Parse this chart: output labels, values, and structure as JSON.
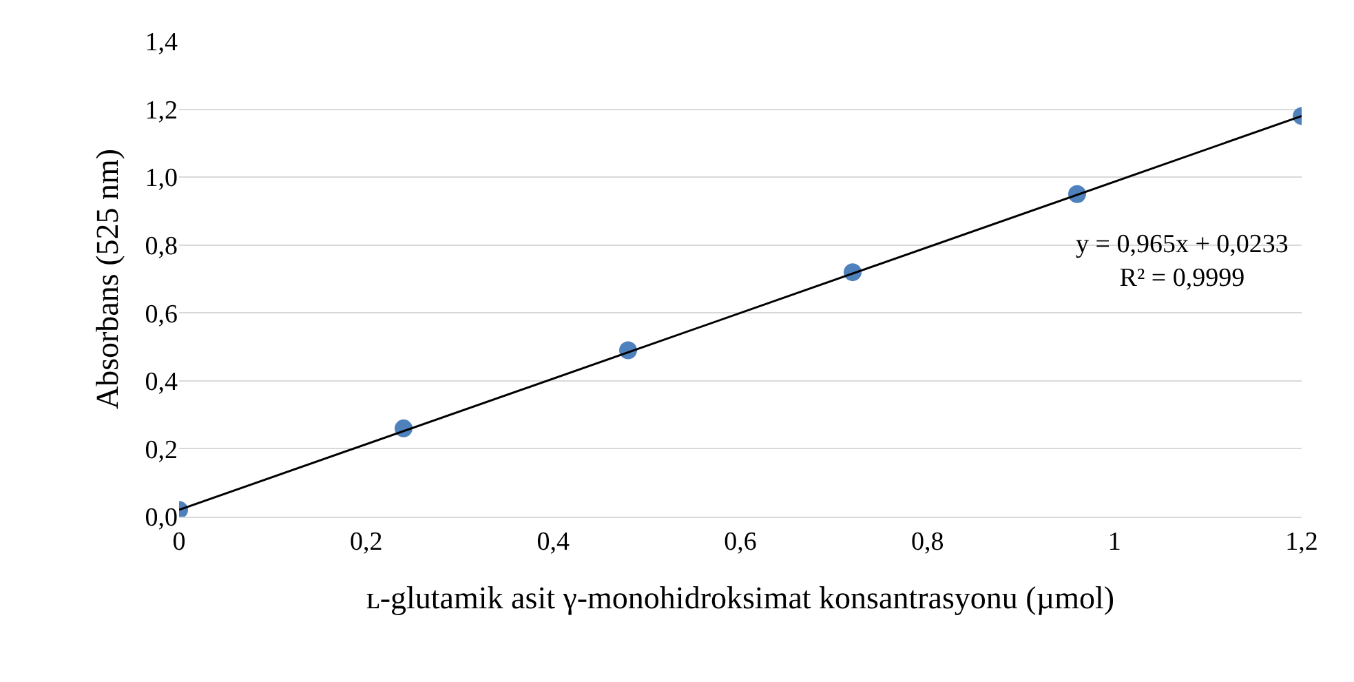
{
  "chart_data": {
    "type": "scatter",
    "xlabel": "ʟ-glutamik asit γ-monohidroksimat konsantrasyonu (µmol)",
    "ylabel": "Absorbans (525 nm)",
    "x": [
      0,
      0.24,
      0.48,
      0.72,
      0.96,
      1.2
    ],
    "series": [
      {
        "color": "#4f81bd",
        "values": [
          0.02,
          0.26,
          0.49,
          0.72,
          0.95,
          1.18
        ],
        "marker": "circle"
      },
      {
        "type": "line",
        "color": "#000000",
        "x": [
          0,
          1.2
        ],
        "values": [
          0.02,
          1.18
        ],
        "line_style": "solid"
      }
    ],
    "xlim": [
      0,
      1.2
    ],
    "ylim": [
      0,
      1.4
    ],
    "xticks": [
      0,
      {
        "value": 0.2,
        "label": "0,2"
      },
      {
        "value": 0.4,
        "label": "0,4"
      },
      {
        "value": 0.6,
        "label": "0,6"
      },
      {
        "value": 0.8,
        "label": "0,8"
      },
      1,
      {
        "value": 1.2,
        "label": "1,2"
      }
    ],
    "yticks": [
      {
        "value": 0,
        "label": "0,0"
      },
      {
        "value": 0.2,
        "label": "0,2"
      },
      {
        "value": 0.4,
        "label": "0,4"
      },
      {
        "value": 0.6,
        "label": "0,6"
      },
      {
        "value": 0.8,
        "label": "0,8"
      },
      {
        "value": 1.0,
        "label": "1,0"
      },
      {
        "value": 1.2,
        "label": "1,2"
      },
      {
        "value": 1.4,
        "label": "1,4"
      }
    ],
    "grid": "y",
    "legend": false,
    "annotations": [
      "y = 0,965x + 0,0233\nR² = 0,9999"
    ]
  }
}
